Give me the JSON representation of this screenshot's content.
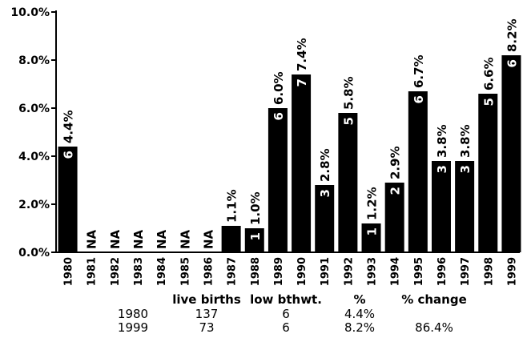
{
  "chart_data": {
    "type": "bar",
    "categories": [
      "1980",
      "1981",
      "1982",
      "1983",
      "1984",
      "1985",
      "1986",
      "1987",
      "1988",
      "1989",
      "1990",
      "1991",
      "1992",
      "1993",
      "1994",
      "1995",
      "1996",
      "1997",
      "1998",
      "1999"
    ],
    "values": [
      4.4,
      null,
      null,
      null,
      null,
      null,
      null,
      1.1,
      1.0,
      6.0,
      7.4,
      2.8,
      5.8,
      1.2,
      2.9,
      6.7,
      3.8,
      3.8,
      6.6,
      8.2
    ],
    "value_labels": [
      "4.4%",
      "NA",
      "NA",
      "NA",
      "NA",
      "NA",
      "NA",
      "1.1%",
      "1.0%",
      "6.0%",
      "7.4%",
      "2.8%",
      "5.8%",
      "1.2%",
      "2.9%",
      "6.7%",
      "3.8%",
      "3.8%",
      "6.6%",
      "8.2%"
    ],
    "counts": [
      "6",
      "",
      "",
      "",
      "",
      "",
      "",
      "",
      "1",
      "6",
      "7",
      "3",
      "5",
      "1",
      "2",
      "6",
      "3",
      "3",
      "5",
      "6"
    ],
    "ylim": [
      0,
      10
    ],
    "yticks": [
      0,
      2,
      4,
      6,
      8,
      10
    ],
    "ytick_labels": [
      "0.0%",
      "2.0%",
      "4.0%",
      "6.0%",
      "8.0%",
      "10.0%"
    ],
    "grid": false,
    "bar_color": "#000000",
    "title": "",
    "xlabel": "",
    "ylabel": ""
  },
  "summary_table": {
    "headers": [
      "live births",
      "low bthwt.",
      "%",
      "% change"
    ],
    "rows": [
      {
        "year": "1980",
        "live_births": "137",
        "low_bthwt": "6",
        "percent": "4.4%",
        "change": ""
      },
      {
        "year": "1999",
        "live_births": "73",
        "low_bthwt": "6",
        "percent": "8.2%",
        "change": "86.4%"
      }
    ]
  }
}
